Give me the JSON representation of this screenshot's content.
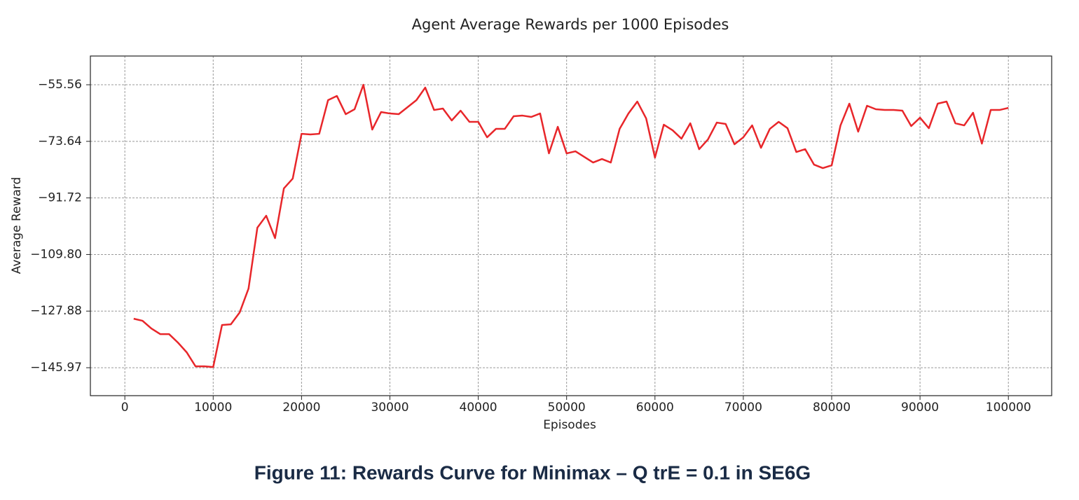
{
  "chart_data": {
    "type": "line",
    "title": "Agent Average Rewards per 1000 Episodes",
    "x_label": "Episodes",
    "y_label": "Average Reward",
    "x": [
      1000,
      2000,
      3000,
      4000,
      5000,
      6000,
      7000,
      8000,
      9000,
      10000,
      11000,
      12000,
      13000,
      14000,
      15000,
      16000,
      17000,
      18000,
      19000,
      20000,
      21000,
      22000,
      23000,
      24000,
      25000,
      26000,
      27000,
      28000,
      29000,
      30000,
      31000,
      32000,
      33000,
      34000,
      35000,
      36000,
      37000,
      38000,
      39000,
      40000,
      41000,
      42000,
      43000,
      44000,
      45000,
      46000,
      47000,
      48000,
      49000,
      50000,
      51000,
      52000,
      53000,
      54000,
      55000,
      56000,
      57000,
      58000,
      59000,
      60000,
      61000,
      62000,
      63000,
      64000,
      65000,
      66000,
      67000,
      68000,
      69000,
      70000,
      71000,
      72000,
      73000,
      74000,
      75000,
      76000,
      77000,
      78000,
      79000,
      80000,
      81000,
      82000,
      83000,
      84000,
      85000,
      86000,
      87000,
      88000,
      89000,
      90000,
      91000,
      92000,
      93000,
      94000,
      95000,
      96000,
      97000,
      98000,
      99000,
      100000
    ],
    "series": [
      {
        "name": "Average Reward",
        "color": "#e8262a",
        "values": [
          -130.31,
          -130.98,
          -133.44,
          -135.23,
          -135.23,
          -137.92,
          -141.05,
          -145.53,
          -145.53,
          -145.75,
          -132.32,
          -132.1,
          -128.3,
          -120.69,
          -101.22,
          -97.41,
          -104.57,
          -88.68,
          -85.55,
          -71.23,
          -71.45,
          -71.23,
          -60.48,
          -59.14,
          -64.96,
          -63.39,
          -55.56,
          -69.88,
          -64.29,
          -64.74,
          -64.96,
          -62.72,
          -60.48,
          -56.46,
          -63.62,
          -63.17,
          -66.97,
          -63.84,
          -67.42,
          -67.42,
          -72.35,
          -69.66,
          -69.66,
          -65.63,
          -65.41,
          -65.85,
          -64.74,
          -77.49,
          -68.99,
          -77.49,
          -76.82,
          -78.61,
          -80.4,
          -79.28,
          -80.4,
          -69.66,
          -64.74,
          -60.93,
          -66.3,
          -78.84,
          -68.32,
          -70.11,
          -72.79,
          -67.87,
          -76.15,
          -73.02,
          -67.65,
          -68.09,
          -74.58,
          -72.35,
          -68.54,
          -75.7,
          -69.66,
          -67.42,
          -69.44,
          -77.04,
          -76.15,
          -81.07,
          -82.19,
          -81.3,
          -68.54,
          -61.6,
          -70.55,
          -62.27,
          -63.39,
          -63.62,
          -63.62,
          -63.84,
          -68.76,
          -66.08,
          -69.44,
          -61.6,
          -60.93,
          -67.87,
          -68.54,
          -64.51,
          -74.36,
          -63.62,
          -63.62,
          -62.95
        ]
      }
    ],
    "xlim": [
      -3900,
      104900
    ],
    "ylim": [
      -154.9,
      -46.38
    ],
    "xticks": [
      0,
      10000,
      20000,
      30000,
      40000,
      50000,
      60000,
      70000,
      80000,
      90000,
      100000
    ],
    "yticks": [
      {
        "value": -55.56,
        "label": "−55.56"
      },
      {
        "value": -73.64,
        "label": "−73.64"
      },
      {
        "value": -91.72,
        "label": "−91.72"
      },
      {
        "value": -109.8,
        "label": "−109.80"
      },
      {
        "value": -127.88,
        "label": "−127.88"
      },
      {
        "value": -145.97,
        "label": "−145.97"
      }
    ],
    "grid": true
  },
  "caption": "Figure 11: Rewards Curve for Minimax – Q trE = 0.1 in SE6G"
}
